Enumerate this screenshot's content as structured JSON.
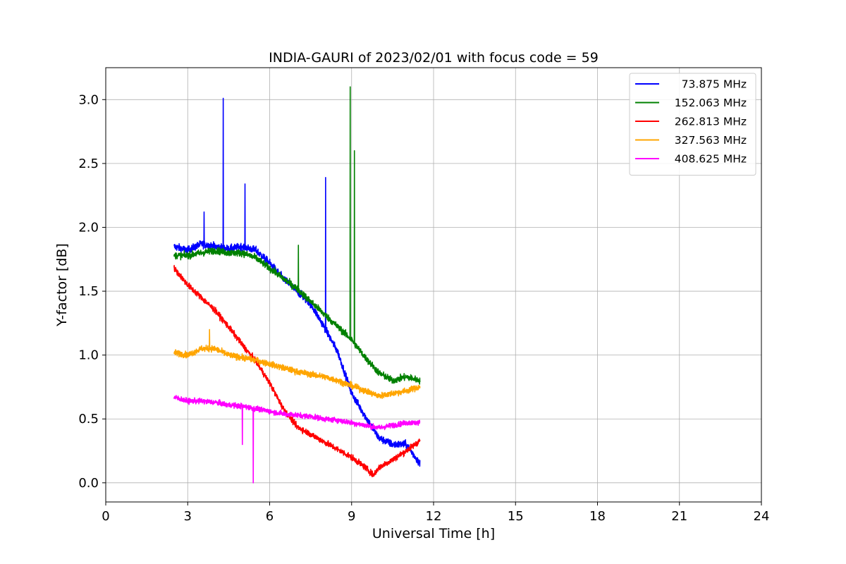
{
  "chart_data": {
    "type": "line",
    "title": "INDIA-GAURI of 2023/02/01 with focus code = 59",
    "xlabel": "Universal Time [h]",
    "ylabel": "Y-factor [dB]",
    "xlim": [
      0,
      24
    ],
    "ylim": [
      -0.15,
      3.25
    ],
    "xticks": [
      0,
      3,
      6,
      9,
      12,
      15,
      18,
      21,
      24
    ],
    "xtick_labels": [
      "0",
      "3",
      "6",
      "9",
      "12",
      "15",
      "18",
      "21",
      "24"
    ],
    "yticks": [
      0.0,
      0.5,
      1.0,
      1.5,
      2.0,
      2.5,
      3.0
    ],
    "ytick_labels": [
      "0.0",
      "0.5",
      "1.0",
      "1.5",
      "2.0",
      "2.5",
      "3.0"
    ],
    "grid": true,
    "legend_position": "top-right",
    "series": [
      {
        "name": "73.875 MHz",
        "color": "#0000ff",
        "noise": 0.05,
        "points": [
          [
            2.5,
            1.85
          ],
          [
            3.0,
            1.82
          ],
          [
            3.5,
            1.87
          ],
          [
            4.0,
            1.85
          ],
          [
            4.5,
            1.83
          ],
          [
            5.0,
            1.85
          ],
          [
            5.5,
            1.82
          ],
          [
            6.0,
            1.72
          ],
          [
            6.5,
            1.6
          ],
          [
            7.0,
            1.5
          ],
          [
            7.5,
            1.4
          ],
          [
            8.0,
            1.22
          ],
          [
            8.5,
            1.02
          ],
          [
            9.0,
            0.7
          ],
          [
            9.5,
            0.52
          ],
          [
            10.0,
            0.35
          ],
          [
            10.5,
            0.3
          ],
          [
            11.0,
            0.3
          ],
          [
            11.5,
            0.15
          ]
        ],
        "spikes": [
          [
            4.3,
            3.01
          ],
          [
            5.1,
            2.34
          ],
          [
            8.05,
            2.39
          ],
          [
            3.6,
            2.12
          ]
        ]
      },
      {
        "name": "152.063 MHz",
        "color": "#008000",
        "noise": 0.045,
        "points": [
          [
            2.5,
            1.78
          ],
          [
            3.0,
            1.78
          ],
          [
            3.5,
            1.8
          ],
          [
            4.0,
            1.82
          ],
          [
            4.5,
            1.8
          ],
          [
            5.0,
            1.8
          ],
          [
            5.5,
            1.76
          ],
          [
            6.0,
            1.68
          ],
          [
            6.5,
            1.6
          ],
          [
            7.0,
            1.52
          ],
          [
            7.5,
            1.42
          ],
          [
            8.0,
            1.32
          ],
          [
            8.5,
            1.22
          ],
          [
            9.0,
            1.12
          ],
          [
            9.5,
            0.98
          ],
          [
            10.0,
            0.86
          ],
          [
            10.5,
            0.8
          ],
          [
            11.0,
            0.83
          ],
          [
            11.5,
            0.8
          ]
        ],
        "spikes": [
          [
            8.95,
            3.1
          ],
          [
            7.05,
            1.86
          ],
          [
            9.1,
            2.6
          ]
        ]
      },
      {
        "name": "262.813 MHz",
        "color": "#ff0000",
        "noise": 0.04,
        "points": [
          [
            2.5,
            1.68
          ],
          [
            3.0,
            1.55
          ],
          [
            3.5,
            1.45
          ],
          [
            4.0,
            1.35
          ],
          [
            4.5,
            1.22
          ],
          [
            5.0,
            1.08
          ],
          [
            5.5,
            0.95
          ],
          [
            6.0,
            0.78
          ],
          [
            6.5,
            0.58
          ],
          [
            7.0,
            0.44
          ],
          [
            7.5,
            0.38
          ],
          [
            8.0,
            0.32
          ],
          [
            8.5,
            0.26
          ],
          [
            9.0,
            0.2
          ],
          [
            9.5,
            0.12
          ],
          [
            9.8,
            0.06
          ],
          [
            10.0,
            0.12
          ],
          [
            10.5,
            0.18
          ],
          [
            11.0,
            0.25
          ],
          [
            11.5,
            0.33
          ]
        ],
        "spikes": []
      },
      {
        "name": "327.563 MHz",
        "color": "#ffa500",
        "noise": 0.04,
        "points": [
          [
            2.5,
            1.02
          ],
          [
            3.0,
            1.0
          ],
          [
            3.5,
            1.05
          ],
          [
            4.0,
            1.05
          ],
          [
            4.5,
            1.0
          ],
          [
            5.0,
            0.98
          ],
          [
            5.5,
            0.96
          ],
          [
            6.0,
            0.93
          ],
          [
            6.5,
            0.9
          ],
          [
            7.0,
            0.87
          ],
          [
            7.5,
            0.85
          ],
          [
            8.0,
            0.83
          ],
          [
            8.5,
            0.8
          ],
          [
            9.0,
            0.76
          ],
          [
            9.5,
            0.72
          ],
          [
            10.0,
            0.68
          ],
          [
            10.5,
            0.7
          ],
          [
            11.0,
            0.72
          ],
          [
            11.5,
            0.75
          ]
        ],
        "spikes": [
          [
            3.8,
            1.2
          ]
        ]
      },
      {
        "name": "408.625 MHz",
        "color": "#ff00ff",
        "noise": 0.035,
        "points": [
          [
            2.5,
            0.67
          ],
          [
            3.0,
            0.64
          ],
          [
            3.5,
            0.64
          ],
          [
            4.0,
            0.63
          ],
          [
            4.5,
            0.61
          ],
          [
            5.0,
            0.6
          ],
          [
            5.5,
            0.58
          ],
          [
            6.0,
            0.56
          ],
          [
            6.5,
            0.54
          ],
          [
            7.0,
            0.53
          ],
          [
            7.5,
            0.52
          ],
          [
            8.0,
            0.5
          ],
          [
            8.5,
            0.49
          ],
          [
            9.0,
            0.47
          ],
          [
            9.5,
            0.45
          ],
          [
            10.0,
            0.43
          ],
          [
            10.5,
            0.45
          ],
          [
            11.0,
            0.47
          ],
          [
            11.5,
            0.47
          ]
        ],
        "spikes": [
          [
            5.4,
            0.0
          ],
          [
            5.0,
            0.3
          ]
        ]
      }
    ]
  }
}
